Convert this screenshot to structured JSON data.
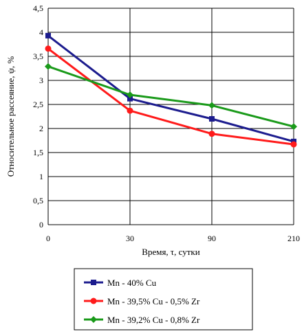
{
  "chart_data": {
    "type": "line",
    "title": "",
    "xlabel": "Время, τ, сутки",
    "ylabel": "Относительное рассеяние, ψ, %",
    "categories": [
      "0",
      "30",
      "90",
      "210"
    ],
    "ylim": [
      0,
      4.5
    ],
    "yticks": [
      "0",
      "0,5",
      "1",
      "1,5",
      "2",
      "2,5",
      "3",
      "3,5",
      "4",
      "4,5"
    ],
    "grid": true,
    "legend_position": "bottom",
    "series": [
      {
        "name": "Mn - 40% Cu",
        "values": [
          3.93,
          2.62,
          2.2,
          1.73
        ],
        "color": "#1c1c8e",
        "marker": "square"
      },
      {
        "name": "Mn - 39,5% Cu - 0,5% Zr",
        "values": [
          3.66,
          2.37,
          1.89,
          1.67
        ],
        "color": "#ff1a1a",
        "marker": "circle"
      },
      {
        "name": "Mn - 39,2% Cu - 0,8% Zr",
        "values": [
          3.29,
          2.7,
          2.48,
          2.04
        ],
        "color": "#1a9a1a",
        "marker": "diamond"
      }
    ]
  }
}
